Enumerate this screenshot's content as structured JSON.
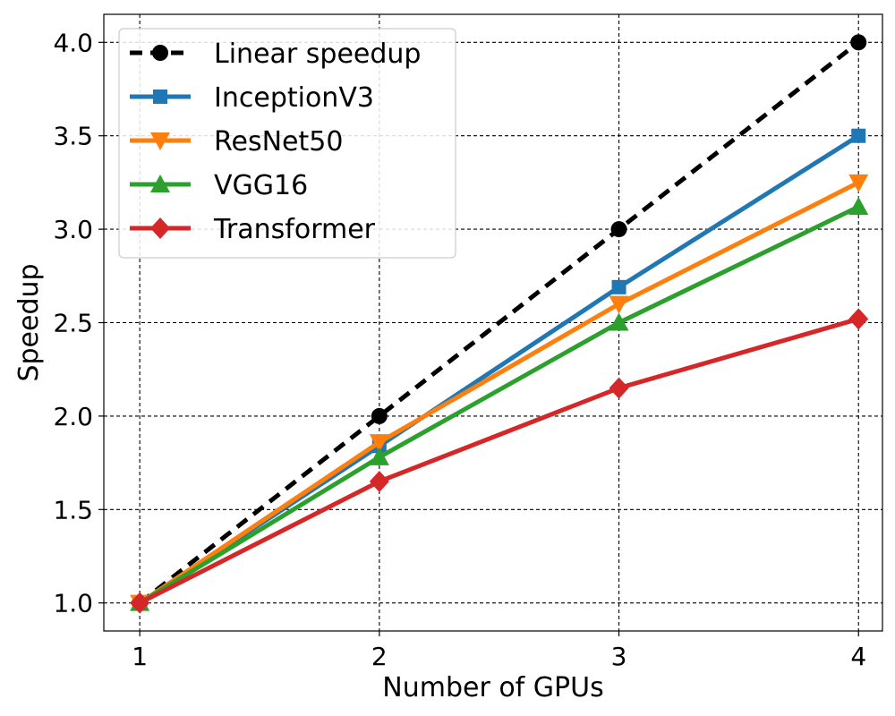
{
  "chart_data": {
    "type": "line",
    "xlabel": "Number of GPUs",
    "ylabel": "Speedup",
    "x": [
      1,
      2,
      3,
      4
    ],
    "xticks": [
      "1",
      "2",
      "3",
      "4"
    ],
    "yticks": [
      "1.0",
      "1.5",
      "2.0",
      "2.5",
      "3.0",
      "3.5",
      "4.0"
    ],
    "xlim": [
      0.85,
      4.1
    ],
    "ylim": [
      0.85,
      4.15
    ],
    "grid": true,
    "legend_position": "top-left",
    "series": [
      {
        "name": "Linear speedup",
        "values": [
          1.0,
          2.0,
          3.0,
          4.0
        ],
        "color": "#000000",
        "marker": "circle",
        "dashed": true
      },
      {
        "name": "InceptionV3",
        "values": [
          1.0,
          1.84,
          2.69,
          3.5
        ],
        "color": "#1f77b4",
        "marker": "square",
        "dashed": false
      },
      {
        "name": "ResNet50",
        "values": [
          1.0,
          1.86,
          2.6,
          3.25
        ],
        "color": "#ff7f0e",
        "marker": "triangle-down",
        "dashed": false
      },
      {
        "name": "VGG16",
        "values": [
          1.0,
          1.78,
          2.5,
          3.12
        ],
        "color": "#2ca02c",
        "marker": "triangle-up",
        "dashed": false
      },
      {
        "name": "Transformer",
        "values": [
          1.0,
          1.65,
          2.15,
          2.52
        ],
        "color": "#d62728",
        "marker": "diamond",
        "dashed": false
      }
    ]
  }
}
